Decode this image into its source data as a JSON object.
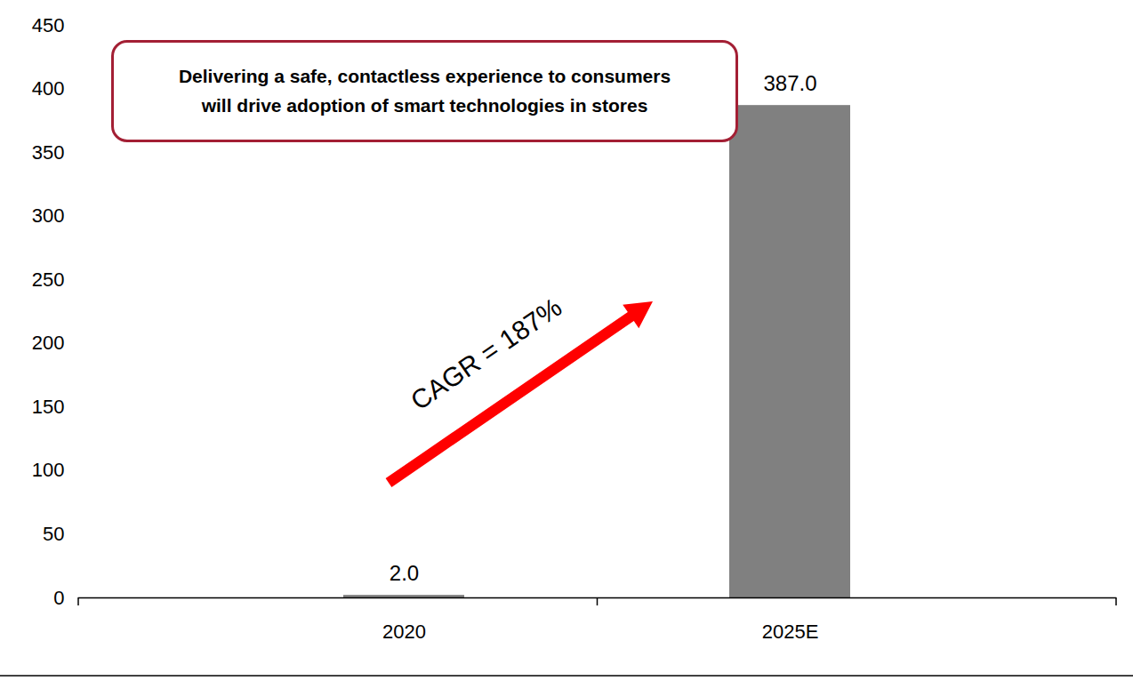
{
  "chart_data": {
    "type": "bar",
    "categories": [
      "2020",
      "2025E"
    ],
    "values": [
      2,
      387
    ],
    "value_labels": [
      "2.0",
      "387.0"
    ],
    "data_labels": true,
    "color": "#808080",
    "ylim": [
      0,
      450
    ],
    "yticks": [
      0,
      50,
      100,
      150,
      200,
      250,
      300,
      350,
      400,
      450
    ],
    "grid": false,
    "annotations": [
      "Delivering a safe, contactless experience to consumers\nwill drive adoption of smart technologies in stores",
      "CAGR = 187%"
    ]
  }
}
